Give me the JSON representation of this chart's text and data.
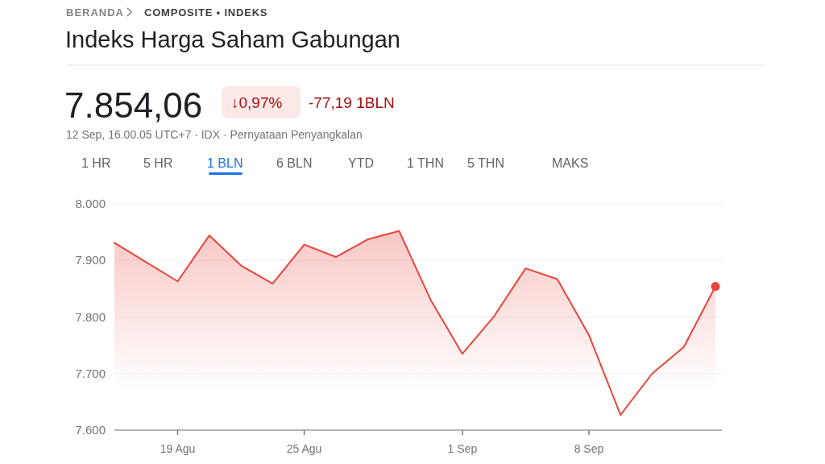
{
  "chart_data": {
    "type": "area",
    "title": "Indeks Harga Saham Gabungan",
    "annotations": [
      "BERANDA",
      "COMPOSITE • INDEKS",
      "7.854,06",
      "↓0,97%",
      "-77,19 1BLN",
      "12 Sep, 16.00.05 UTC+7 · IDX · Pernyataan Penyangkalan",
      "1 HR",
      "5 HR",
      "1 BLN",
      "6 BLN",
      "YTD",
      "1 THN",
      "5 THN",
      "MAKS"
    ],
    "categories": [
      null,
      null,
      "19 Agu",
      null,
      null,
      null,
      "25 Agu",
      null,
      null,
      null,
      null,
      "1 Sep",
      null,
      null,
      null,
      "8 Sep",
      null,
      null,
      null,
      null
    ],
    "series": [
      {
        "color": "#e8453c",
        "values": [
          7931,
          7897,
          7863,
          7944,
          7891,
          7859,
          7928,
          7906,
          7937,
          7952,
          7830,
          7735,
          7801,
          7886,
          7867,
          7768,
          7627,
          7700,
          7747,
          7854
        ]
      },
      {
        "type": "scatter",
        "color": "#e8453c",
        "marker": "circle",
        "values": [
          null,
          null,
          null,
          null,
          null,
          null,
          null,
          null,
          null,
          null,
          null,
          null,
          null,
          null,
          null,
          null,
          null,
          null,
          null,
          7854
        ]
      }
    ],
    "ylim": [
      7600,
      8000
    ],
    "yticks": [
      {
        "value": 7600,
        "label": "7.600"
      },
      {
        "value": 7700,
        "label": "7.700"
      },
      {
        "value": 7800,
        "label": "7.800"
      },
      {
        "value": 7900,
        "label": "7.900"
      },
      {
        "value": 8000,
        "label": "8.000"
      }
    ],
    "grid": "y"
  }
}
